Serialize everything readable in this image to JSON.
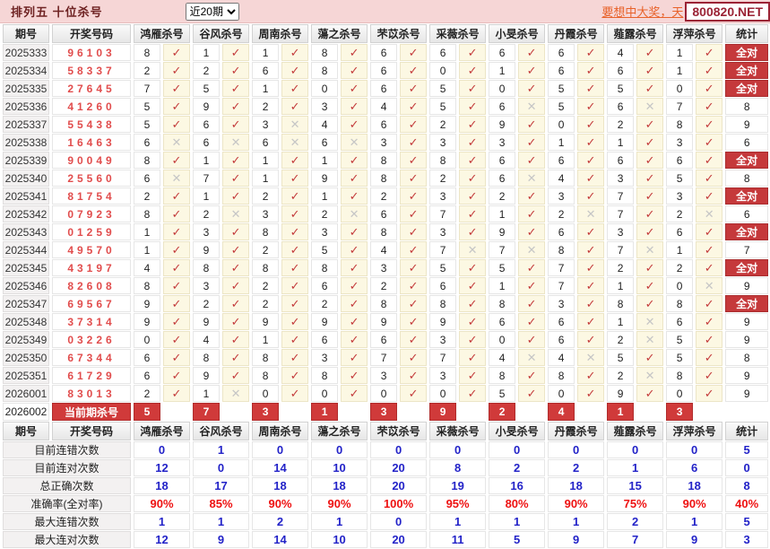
{
  "toolbar": {
    "title": "排列五 十位杀号",
    "period_select": "近20期",
    "marquee": "要想中大奖，天",
    "site": "800820.NET"
  },
  "colors": {
    "accent_red": "#c5393b",
    "draw_number_red": "#e14d4d",
    "summary_blue": "#2323c8",
    "summary_red": "#ee1111",
    "topbar_pink": "#f6d6d6"
  },
  "table": {
    "col_period": "期号",
    "col_code": "开奖号码",
    "col_stat": "统计",
    "predictors": [
      "鸿雁杀号",
      "谷风杀号",
      "周南杀号",
      "蕩之杀号",
      "芣苡杀号",
      "采薇杀号",
      "小旻杀号",
      "丹霞杀号",
      "薤露杀号",
      "浮萍杀号"
    ],
    "full_correct_label": "全对",
    "marks": {
      "ok": "✓",
      "bad": "✕"
    },
    "rows": [
      {
        "period": "2025333",
        "code": "96103",
        "kills": [
          [
            "8",
            1
          ],
          [
            "1",
            1
          ],
          [
            "1",
            1
          ],
          [
            "8",
            1
          ],
          [
            "6",
            1
          ],
          [
            "6",
            1
          ],
          [
            "6",
            1
          ],
          [
            "6",
            1
          ],
          [
            "4",
            1
          ],
          [
            "1",
            1
          ]
        ],
        "stat": "全对"
      },
      {
        "period": "2025334",
        "code": "58337",
        "kills": [
          [
            "2",
            1
          ],
          [
            "2",
            1
          ],
          [
            "6",
            1
          ],
          [
            "8",
            1
          ],
          [
            "6",
            1
          ],
          [
            "0",
            1
          ],
          [
            "1",
            1
          ],
          [
            "6",
            1
          ],
          [
            "6",
            1
          ],
          [
            "1",
            1
          ]
        ],
        "stat": "全对"
      },
      {
        "period": "2025335",
        "code": "27645",
        "kills": [
          [
            "7",
            1
          ],
          [
            "5",
            1
          ],
          [
            "1",
            1
          ],
          [
            "0",
            1
          ],
          [
            "6",
            1
          ],
          [
            "5",
            1
          ],
          [
            "0",
            1
          ],
          [
            "5",
            1
          ],
          [
            "5",
            1
          ],
          [
            "0",
            1
          ]
        ],
        "stat": "全对"
      },
      {
        "period": "2025336",
        "code": "41260",
        "kills": [
          [
            "5",
            1
          ],
          [
            "9",
            1
          ],
          [
            "2",
            1
          ],
          [
            "3",
            1
          ],
          [
            "4",
            1
          ],
          [
            "5",
            1
          ],
          [
            "6",
            0
          ],
          [
            "5",
            1
          ],
          [
            "6",
            0
          ],
          [
            "7",
            1
          ]
        ],
        "stat": "8"
      },
      {
        "period": "2025337",
        "code": "55438",
        "kills": [
          [
            "5",
            1
          ],
          [
            "6",
            1
          ],
          [
            "3",
            0
          ],
          [
            "4",
            1
          ],
          [
            "6",
            1
          ],
          [
            "2",
            1
          ],
          [
            "9",
            1
          ],
          [
            "0",
            1
          ],
          [
            "2",
            1
          ],
          [
            "8",
            1
          ]
        ],
        "stat": "9"
      },
      {
        "period": "2025338",
        "code": "16463",
        "kills": [
          [
            "6",
            0
          ],
          [
            "6",
            0
          ],
          [
            "6",
            0
          ],
          [
            "6",
            0
          ],
          [
            "3",
            1
          ],
          [
            "3",
            1
          ],
          [
            "3",
            1
          ],
          [
            "1",
            1
          ],
          [
            "1",
            1
          ],
          [
            "3",
            1
          ]
        ],
        "stat": "6"
      },
      {
        "period": "2025339",
        "code": "90049",
        "kills": [
          [
            "8",
            1
          ],
          [
            "1",
            1
          ],
          [
            "1",
            1
          ],
          [
            "1",
            1
          ],
          [
            "8",
            1
          ],
          [
            "8",
            1
          ],
          [
            "6",
            1
          ],
          [
            "6",
            1
          ],
          [
            "6",
            1
          ],
          [
            "6",
            1
          ]
        ],
        "stat": "全对"
      },
      {
        "period": "2025340",
        "code": "25560",
        "kills": [
          [
            "6",
            0
          ],
          [
            "7",
            1
          ],
          [
            "1",
            1
          ],
          [
            "9",
            1
          ],
          [
            "8",
            1
          ],
          [
            "2",
            1
          ],
          [
            "6",
            0
          ],
          [
            "4",
            1
          ],
          [
            "3",
            1
          ],
          [
            "5",
            1
          ]
        ],
        "stat": "8"
      },
      {
        "period": "2025341",
        "code": "81754",
        "kills": [
          [
            "2",
            1
          ],
          [
            "1",
            1
          ],
          [
            "2",
            1
          ],
          [
            "1",
            1
          ],
          [
            "2",
            1
          ],
          [
            "3",
            1
          ],
          [
            "2",
            1
          ],
          [
            "3",
            1
          ],
          [
            "7",
            1
          ],
          [
            "3",
            1
          ]
        ],
        "stat": "全对"
      },
      {
        "period": "2025342",
        "code": "07923",
        "kills": [
          [
            "8",
            1
          ],
          [
            "2",
            0
          ],
          [
            "3",
            1
          ],
          [
            "2",
            0
          ],
          [
            "6",
            1
          ],
          [
            "7",
            1
          ],
          [
            "1",
            1
          ],
          [
            "2",
            0
          ],
          [
            "7",
            1
          ],
          [
            "2",
            0
          ]
        ],
        "stat": "6"
      },
      {
        "period": "2025343",
        "code": "01259",
        "kills": [
          [
            "1",
            1
          ],
          [
            "3",
            1
          ],
          [
            "8",
            1
          ],
          [
            "3",
            1
          ],
          [
            "8",
            1
          ],
          [
            "3",
            1
          ],
          [
            "9",
            1
          ],
          [
            "6",
            1
          ],
          [
            "3",
            1
          ],
          [
            "6",
            1
          ]
        ],
        "stat": "全对"
      },
      {
        "period": "2025344",
        "code": "49570",
        "kills": [
          [
            "1",
            1
          ],
          [
            "9",
            1
          ],
          [
            "2",
            1
          ],
          [
            "5",
            1
          ],
          [
            "4",
            1
          ],
          [
            "7",
            0
          ],
          [
            "7",
            0
          ],
          [
            "8",
            1
          ],
          [
            "7",
            0
          ],
          [
            "1",
            1
          ]
        ],
        "stat": "7"
      },
      {
        "period": "2025345",
        "code": "43197",
        "kills": [
          [
            "4",
            1
          ],
          [
            "8",
            1
          ],
          [
            "8",
            1
          ],
          [
            "8",
            1
          ],
          [
            "3",
            1
          ],
          [
            "5",
            1
          ],
          [
            "5",
            1
          ],
          [
            "7",
            1
          ],
          [
            "2",
            1
          ],
          [
            "2",
            1
          ]
        ],
        "stat": "全对"
      },
      {
        "period": "2025346",
        "code": "82608",
        "kills": [
          [
            "8",
            1
          ],
          [
            "3",
            1
          ],
          [
            "2",
            1
          ],
          [
            "6",
            1
          ],
          [
            "2",
            1
          ],
          [
            "6",
            1
          ],
          [
            "1",
            1
          ],
          [
            "7",
            1
          ],
          [
            "1",
            1
          ],
          [
            "0",
            0
          ]
        ],
        "stat": "9"
      },
      {
        "period": "2025347",
        "code": "69567",
        "kills": [
          [
            "9",
            1
          ],
          [
            "2",
            1
          ],
          [
            "2",
            1
          ],
          [
            "2",
            1
          ],
          [
            "8",
            1
          ],
          [
            "8",
            1
          ],
          [
            "8",
            1
          ],
          [
            "3",
            1
          ],
          [
            "8",
            1
          ],
          [
            "8",
            1
          ]
        ],
        "stat": "全对"
      },
      {
        "period": "2025348",
        "code": "37314",
        "kills": [
          [
            "9",
            1
          ],
          [
            "9",
            1
          ],
          [
            "9",
            1
          ],
          [
            "9",
            1
          ],
          [
            "9",
            1
          ],
          [
            "9",
            1
          ],
          [
            "6",
            1
          ],
          [
            "6",
            1
          ],
          [
            "1",
            0
          ],
          [
            "6",
            1
          ]
        ],
        "stat": "9"
      },
      {
        "period": "2025349",
        "code": "03226",
        "kills": [
          [
            "0",
            1
          ],
          [
            "4",
            1
          ],
          [
            "1",
            1
          ],
          [
            "6",
            1
          ],
          [
            "6",
            1
          ],
          [
            "3",
            1
          ],
          [
            "0",
            1
          ],
          [
            "6",
            1
          ],
          [
            "2",
            0
          ],
          [
            "5",
            1
          ]
        ],
        "stat": "9"
      },
      {
        "period": "2025350",
        "code": "67344",
        "kills": [
          [
            "6",
            1
          ],
          [
            "8",
            1
          ],
          [
            "8",
            1
          ],
          [
            "3",
            1
          ],
          [
            "7",
            1
          ],
          [
            "7",
            1
          ],
          [
            "4",
            0
          ],
          [
            "4",
            0
          ],
          [
            "5",
            1
          ],
          [
            "5",
            1
          ]
        ],
        "stat": "8"
      },
      {
        "period": "2025351",
        "code": "61729",
        "kills": [
          [
            "6",
            1
          ],
          [
            "9",
            1
          ],
          [
            "8",
            1
          ],
          [
            "8",
            1
          ],
          [
            "3",
            1
          ],
          [
            "3",
            1
          ],
          [
            "8",
            1
          ],
          [
            "8",
            1
          ],
          [
            "2",
            0
          ],
          [
            "8",
            1
          ]
        ],
        "stat": "9"
      },
      {
        "period": "2026001",
        "code": "83013",
        "kills": [
          [
            "2",
            1
          ],
          [
            "1",
            0
          ],
          [
            "0",
            1
          ],
          [
            "0",
            1
          ],
          [
            "0",
            1
          ],
          [
            "0",
            1
          ],
          [
            "5",
            1
          ],
          [
            "0",
            1
          ],
          [
            "9",
            1
          ],
          [
            "0",
            1
          ]
        ],
        "stat": "9"
      }
    ],
    "current": {
      "period": "2026002",
      "label": "当前期杀号",
      "kills": [
        "5",
        "7",
        "3",
        "1",
        "3",
        "9",
        "2",
        "4",
        "1",
        "3"
      ],
      "stat": ""
    },
    "summary": [
      {
        "label": "目前连错次数",
        "values": [
          "0",
          "1",
          "0",
          "0",
          "0",
          "0",
          "0",
          "0",
          "0",
          "0"
        ],
        "stat": "5",
        "style": "blue"
      },
      {
        "label": "目前连对次数",
        "values": [
          "12",
          "0",
          "14",
          "10",
          "20",
          "8",
          "2",
          "2",
          "1",
          "6"
        ],
        "stat": "0",
        "style": "blue"
      },
      {
        "label": "总正确次数",
        "values": [
          "18",
          "17",
          "18",
          "18",
          "20",
          "19",
          "16",
          "18",
          "15",
          "18"
        ],
        "stat": "8",
        "style": "blue"
      },
      {
        "label": "准确率(全对率)",
        "values": [
          "90%",
          "85%",
          "90%",
          "90%",
          "100%",
          "95%",
          "80%",
          "90%",
          "75%",
          "90%"
        ],
        "stat": "40%",
        "style": "red"
      },
      {
        "label": "最大连错次数",
        "values": [
          "1",
          "1",
          "2",
          "1",
          "0",
          "1",
          "1",
          "1",
          "2",
          "1"
        ],
        "stat": "5",
        "style": "blue"
      },
      {
        "label": "最大连对次数",
        "values": [
          "12",
          "9",
          "14",
          "10",
          "20",
          "11",
          "5",
          "9",
          "7",
          "9"
        ],
        "stat": "3",
        "style": "blue"
      }
    ]
  }
}
